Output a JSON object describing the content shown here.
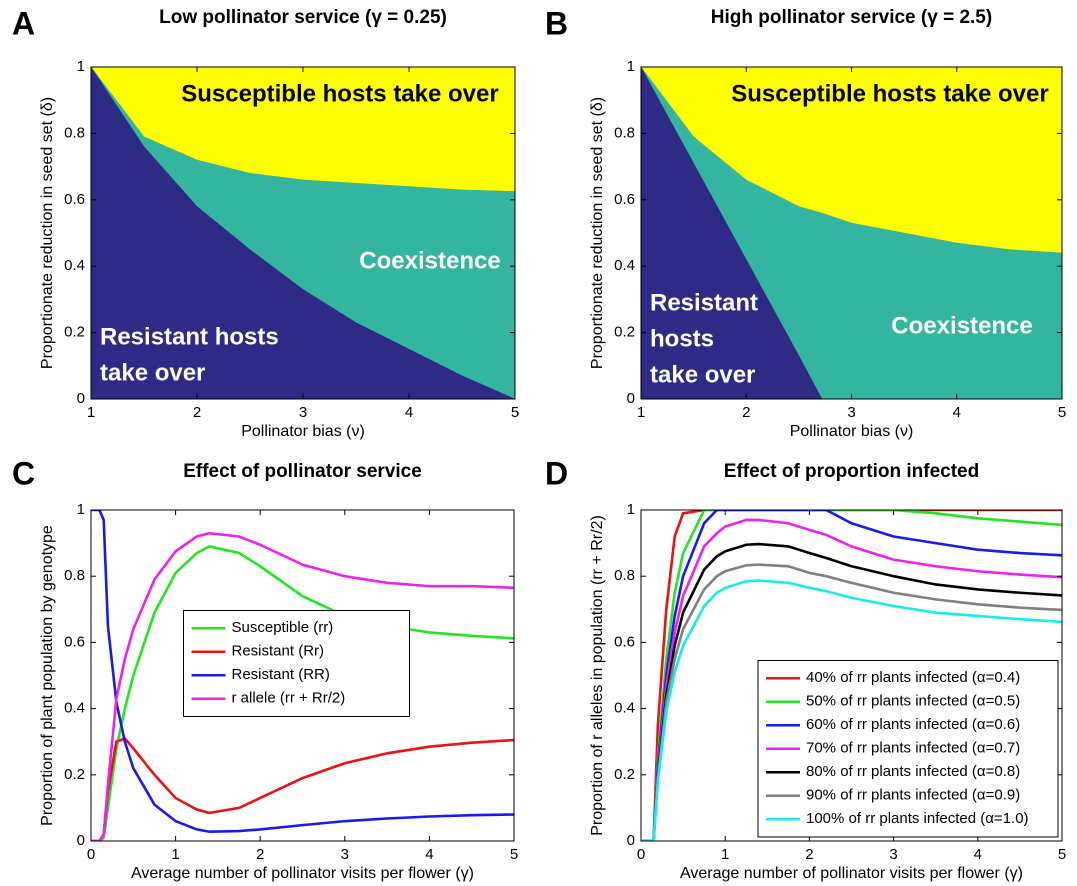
{
  "chart_data": [
    {
      "type": "area",
      "panel": "A",
      "title": "Low pollinator service (γ = 0.25)",
      "xlabel": "Pollinator bias (ν)",
      "ylabel": "Proportionate reduction in seed set (δ)",
      "x": [
        1,
        1.5,
        2,
        2.5,
        3,
        3.5,
        4,
        4.5,
        5
      ],
      "series": [
        {
          "color": "#2e2a86",
          "label": [
            "Resistant hosts",
            "take over"
          ],
          "values": [
            1,
            0.76,
            0.58,
            0.45,
            0.33,
            0.23,
            0.15,
            0.07,
            0
          ]
        },
        {
          "color": "#33b5a0",
          "label": [
            "Coexistence"
          ],
          "values": [
            1,
            0.79,
            0.72,
            0.68,
            0.66,
            0.65,
            0.64,
            0.63,
            0.625
          ]
        },
        {
          "color": "#ffff00",
          "label": [
            "Susceptible hosts take over"
          ],
          "values": [
            1,
            1,
            1,
            1,
            1,
            1,
            1,
            1,
            1
          ]
        }
      ],
      "xlim": [
        1,
        5
      ],
      "ylim": [
        0,
        1
      ],
      "xticks": [
        1,
        2,
        3,
        4,
        5
      ],
      "yticks": [
        0,
        0.2,
        0.4,
        0.6,
        0.8,
        1
      ]
    },
    {
      "type": "area",
      "panel": "B",
      "title": "High pollinator service (γ = 2.5)",
      "xlabel": "Pollinator bias (ν)",
      "ylabel": "Proportionate reduction in seed set (δ)",
      "x": [
        1,
        1.5,
        2,
        2.5,
        2.72,
        3,
        3.5,
        4,
        4.5,
        5
      ],
      "series": [
        {
          "color": "#2e2a86",
          "label": [
            "Resistant",
            "hosts",
            "take over"
          ],
          "values": [
            1,
            0.71,
            0.42,
            0.13,
            0,
            0,
            0,
            0,
            0,
            0
          ]
        },
        {
          "color": "#33b5a0",
          "label": [
            "Coexistence"
          ],
          "values": [
            1,
            0.79,
            0.66,
            0.58,
            0.56,
            0.53,
            0.5,
            0.47,
            0.45,
            0.44
          ]
        },
        {
          "color": "#ffff00",
          "label": [
            "Susceptible hosts take over"
          ],
          "values": [
            1,
            1,
            1,
            1,
            1,
            1,
            1,
            1,
            1,
            1
          ]
        }
      ],
      "xlim": [
        1,
        5
      ],
      "ylim": [
        0,
        1
      ],
      "xticks": [
        1,
        2,
        3,
        4,
        5
      ],
      "yticks": [
        0,
        0.2,
        0.4,
        0.6,
        0.8,
        1
      ]
    },
    {
      "type": "line",
      "panel": "C",
      "title": "Effect of pollinator service",
      "xlabel": "Average number of pollinator visits per flower (γ)",
      "ylabel": "Proportion of plant population by genotype",
      "x": [
        0,
        0.1,
        0.15,
        0.2,
        0.3,
        0.4,
        0.5,
        0.75,
        1,
        1.25,
        1.4,
        1.75,
        2,
        2.5,
        3,
        3.5,
        4,
        4.5,
        5
      ],
      "series": [
        {
          "name": "Susceptible (rr)",
          "color": "#22e622",
          "values": [
            0,
            0,
            0.01,
            0.1,
            0.28,
            0.4,
            0.5,
            0.69,
            0.81,
            0.87,
            0.89,
            0.87,
            0.83,
            0.74,
            0.68,
            0.65,
            0.63,
            0.62,
            0.612
          ]
        },
        {
          "name": "Resistant (Rr)",
          "color": "#ee1111",
          "values": [
            0,
            0,
            0.02,
            0.15,
            0.3,
            0.31,
            0.28,
            0.2,
            0.13,
            0.095,
            0.085,
            0.1,
            0.13,
            0.19,
            0.235,
            0.265,
            0.285,
            0.297,
            0.305
          ]
        },
        {
          "name": "Resistant (RR)",
          "color": "#1a1aee",
          "values": [
            1,
            1,
            0.97,
            0.65,
            0.42,
            0.3,
            0.22,
            0.11,
            0.06,
            0.035,
            0.028,
            0.03,
            0.035,
            0.048,
            0.06,
            0.068,
            0.074,
            0.078,
            0.08
          ]
        },
        {
          "name": "r allele (rr + Rr/2)",
          "color": "#ee22ee",
          "values": [
            0,
            0,
            0.02,
            0.17,
            0.43,
            0.55,
            0.64,
            0.79,
            0.875,
            0.92,
            0.93,
            0.92,
            0.895,
            0.835,
            0.8,
            0.78,
            0.77,
            0.77,
            0.765
          ]
        }
      ],
      "xlim": [
        0,
        5
      ],
      "ylim": [
        0,
        1
      ],
      "xticks": [
        0,
        1,
        2,
        3,
        4,
        5
      ],
      "yticks": [
        0,
        0.2,
        0.4,
        0.6,
        0.8,
        1
      ],
      "legend": "center"
    },
    {
      "type": "line",
      "panel": "D",
      "title": "Effect of proportion infected",
      "xlabel": "Average number of pollinator visits per flower (γ)",
      "ylabel": "Proportion of r alleles in population (rr + Rr/2)",
      "x": [
        0,
        0.1,
        0.15,
        0.2,
        0.3,
        0.4,
        0.5,
        0.75,
        0.9,
        1,
        1.25,
        1.4,
        1.75,
        2,
        2.2,
        2.5,
        3,
        3.5,
        4,
        4.5,
        5
      ],
      "series": [
        {
          "name": "40% of rr plants infected (α=0.4)",
          "color": "#ee1111",
          "values": [
            0,
            0,
            0,
            0.35,
            0.7,
            0.92,
            0.99,
            1,
            1,
            1,
            1,
            1,
            1,
            1,
            1,
            1,
            1,
            1,
            1,
            1,
            1
          ]
        },
        {
          "name": "50% of rr plants infected (α=0.5)",
          "color": "#22e622",
          "values": [
            0,
            0,
            0,
            0.25,
            0.55,
            0.75,
            0.87,
            1,
            1,
            1,
            1,
            1,
            1,
            1,
            1,
            1,
            1,
            0.99,
            0.975,
            0.965,
            0.955
          ]
        },
        {
          "name": "60% of rr plants infected (α=0.6)",
          "color": "#1a1aee",
          "values": [
            0,
            0,
            0,
            0.23,
            0.5,
            0.68,
            0.8,
            0.96,
            1,
            1,
            1,
            1,
            1,
            1,
            1,
            0.96,
            0.92,
            0.9,
            0.88,
            0.87,
            0.863
          ]
        },
        {
          "name": "70% of rr plants infected (α=0.7)",
          "color": "#ee22ee",
          "values": [
            0,
            0,
            0,
            0.22,
            0.47,
            0.63,
            0.74,
            0.89,
            0.93,
            0.95,
            0.97,
            0.97,
            0.96,
            0.94,
            0.925,
            0.89,
            0.85,
            0.83,
            0.815,
            0.805,
            0.797
          ]
        },
        {
          "name": "80% of rr plants infected (α=0.8)",
          "color": "#000000",
          "values": [
            0,
            0,
            0,
            0.2,
            0.44,
            0.59,
            0.69,
            0.82,
            0.86,
            0.875,
            0.895,
            0.897,
            0.89,
            0.87,
            0.855,
            0.83,
            0.8,
            0.775,
            0.76,
            0.75,
            0.742
          ]
        },
        {
          "name": "90% of rr plants infected (α=0.9)",
          "color": "#808080",
          "values": [
            0,
            0,
            0,
            0.19,
            0.42,
            0.55,
            0.64,
            0.76,
            0.8,
            0.815,
            0.833,
            0.835,
            0.83,
            0.81,
            0.8,
            0.78,
            0.75,
            0.73,
            0.715,
            0.705,
            0.698
          ]
        },
        {
          "name": "100% of rr plants infected (α=1.0)",
          "color": "#11eeee",
          "values": [
            0,
            0,
            0,
            0.18,
            0.39,
            0.51,
            0.59,
            0.71,
            0.75,
            0.765,
            0.785,
            0.787,
            0.78,
            0.765,
            0.755,
            0.735,
            0.71,
            0.69,
            0.68,
            0.67,
            0.662
          ]
        }
      ],
      "xlim": [
        0,
        5
      ],
      "ylim": [
        0,
        1
      ],
      "xticks": [
        0,
        1,
        2,
        3,
        4,
        5
      ],
      "yticks": [
        0,
        0.2,
        0.4,
        0.6,
        0.8,
        1
      ],
      "legend": "lower right"
    }
  ]
}
